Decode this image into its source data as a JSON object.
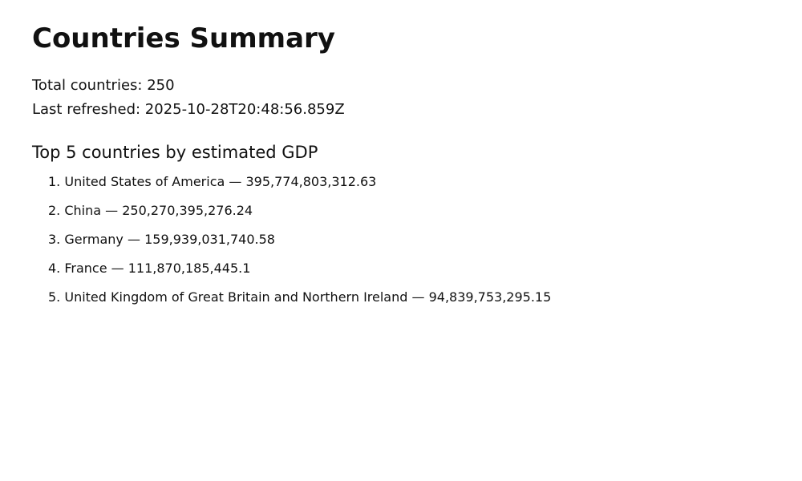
{
  "page": {
    "title": "Countries Summary",
    "total_countries_label": "Total countries:",
    "total_countries": "250",
    "last_refreshed_label": "Last refreshed:",
    "last_refreshed": "2025-10-28T20:48:56.859Z"
  },
  "top_section": {
    "heading": "Top 5 countries by estimated GDP",
    "items": [
      {
        "rank": "1.",
        "name": "United States of America",
        "gdp": "395,774,803,312.63"
      },
      {
        "rank": "2.",
        "name": "China",
        "gdp": "250,270,395,276.24"
      },
      {
        "rank": "3.",
        "name": "Germany",
        "gdp": "159,939,031,740.58"
      },
      {
        "rank": "4.",
        "name": "France",
        "gdp": "111,870,185,445.1"
      },
      {
        "rank": "5.",
        "name": "United Kingdom of Great Britain and Northern Ireland",
        "gdp": "94,839,753,295.15"
      }
    ],
    "separator": "—"
  }
}
